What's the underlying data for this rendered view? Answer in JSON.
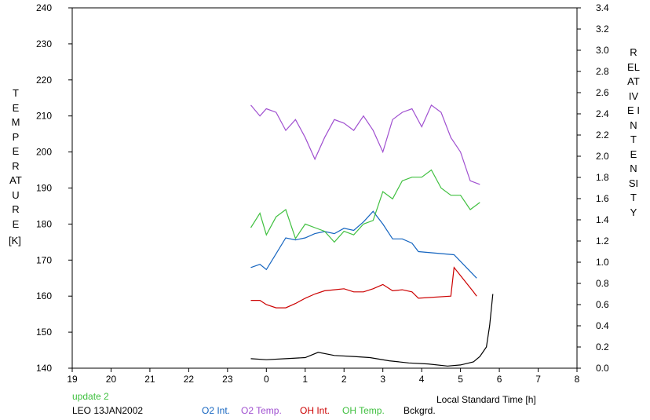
{
  "chart_data": {
    "type": "line",
    "xlabel": "Local Standard Time [h]",
    "ylabel_left": "TEMPERATURE",
    "ylabel_left_unit": "[K]",
    "ylabel_right": "RELATIVE INTENSITY",
    "x_tick_labels": [
      "19",
      "20",
      "21",
      "22",
      "23",
      "0",
      "1",
      "2",
      "3",
      "4",
      "5",
      "6",
      "7",
      "8"
    ],
    "x_range_hours_after_19": [
      0,
      13
    ],
    "y_left_range": [
      140,
      240
    ],
    "y_left_ticks": [
      140,
      150,
      160,
      170,
      180,
      190,
      200,
      210,
      220,
      230,
      240
    ],
    "y_right_range": [
      0.0,
      3.4
    ],
    "y_right_ticks": [
      "0.0",
      "0.2",
      "0.4",
      "0.6",
      "0.8",
      "1.0",
      "1.2",
      "1.4",
      "1.6",
      "1.8",
      "2.0",
      "2.2",
      "2.4",
      "2.6",
      "2.8",
      "3.0",
      "3.2",
      "3.4"
    ],
    "grid": false,
    "series": [
      {
        "name": "O2 Int.",
        "axis": "right",
        "color": "#1565c0",
        "x": [
          "23:36",
          "23:50",
          "0:00",
          "0:15",
          "0:30",
          "0:45",
          "1:00",
          "1:15",
          "1:30",
          "1:45",
          "2:00",
          "2:15",
          "2:30",
          "2:45",
          "3:00",
          "3:15",
          "3:30",
          "3:45",
          "3:55",
          "4:50",
          "5:25"
        ],
        "y": [
          0.95,
          0.98,
          0.93,
          1.08,
          1.23,
          1.21,
          1.23,
          1.27,
          1.29,
          1.27,
          1.32,
          1.3,
          1.38,
          1.48,
          1.36,
          1.22,
          1.22,
          1.18,
          1.1,
          1.07,
          0.85
        ]
      },
      {
        "name": "O2 Temp.",
        "axis": "left",
        "color": "#a050d0",
        "x": [
          "23:36",
          "23:50",
          "0:00",
          "0:15",
          "0:30",
          "0:45",
          "1:00",
          "1:15",
          "1:30",
          "1:45",
          "2:00",
          "2:15",
          "2:30",
          "2:45",
          "3:00",
          "3:15",
          "3:30",
          "3:45",
          "4:00",
          "4:15",
          "4:30",
          "4:45",
          "5:00",
          "5:15",
          "5:30"
        ],
        "y": [
          213,
          210,
          212,
          211,
          206,
          209,
          204,
          198,
          204,
          209,
          208,
          206,
          210,
          206,
          200,
          209,
          211,
          212,
          207,
          213,
          211,
          204,
          200,
          192,
          191
        ]
      },
      {
        "name": "OH Int.",
        "axis": "right",
        "color": "#cc0000",
        "x": [
          "23:36",
          "23:50",
          "0:00",
          "0:15",
          "0:30",
          "0:45",
          "1:00",
          "1:15",
          "1:30",
          "1:45",
          "2:00",
          "2:15",
          "2:30",
          "2:45",
          "3:00",
          "3:15",
          "3:30",
          "3:45",
          "3:55",
          "4:45",
          "4:50",
          "5:20",
          "5:25"
        ],
        "y": [
          0.64,
          0.64,
          0.6,
          0.57,
          0.57,
          0.61,
          0.66,
          0.7,
          0.73,
          0.74,
          0.75,
          0.72,
          0.72,
          0.75,
          0.79,
          0.73,
          0.74,
          0.72,
          0.66,
          0.68,
          0.95,
          0.72,
          0.68
        ]
      },
      {
        "name": "OH Temp.",
        "axis": "left",
        "color": "#40c040",
        "x": [
          "23:36",
          "23:50",
          "0:00",
          "0:15",
          "0:30",
          "0:45",
          "1:00",
          "1:15",
          "1:30",
          "1:45",
          "2:00",
          "2:15",
          "2:30",
          "2:45",
          "3:00",
          "3:15",
          "3:30",
          "3:45",
          "4:00",
          "4:15",
          "4:30",
          "4:45",
          "5:00",
          "5:15",
          "5:30"
        ],
        "y": [
          179,
          183,
          177,
          182,
          184,
          176,
          180,
          179,
          178,
          175,
          178,
          177,
          180,
          181,
          189,
          187,
          192,
          193,
          193,
          195,
          190,
          188,
          188,
          184,
          186
        ]
      },
      {
        "name": "Bckgrd.",
        "axis": "right",
        "color": "#000000",
        "x": [
          "23:36",
          "0:00",
          "0:30",
          "1:00",
          "1:20",
          "1:45",
          "2:15",
          "2:40",
          "3:10",
          "3:40",
          "4:10",
          "4:40",
          "5:00",
          "5:20",
          "5:30",
          "5:40",
          "5:45",
          "5:50"
        ],
        "y": [
          0.09,
          0.08,
          0.09,
          0.1,
          0.15,
          0.12,
          0.11,
          0.1,
          0.07,
          0.05,
          0.04,
          0.02,
          0.03,
          0.06,
          0.11,
          0.2,
          0.4,
          0.7
        ]
      }
    ]
  },
  "footer": {
    "update": "update 2",
    "station": "LEO 13JAN2002"
  }
}
